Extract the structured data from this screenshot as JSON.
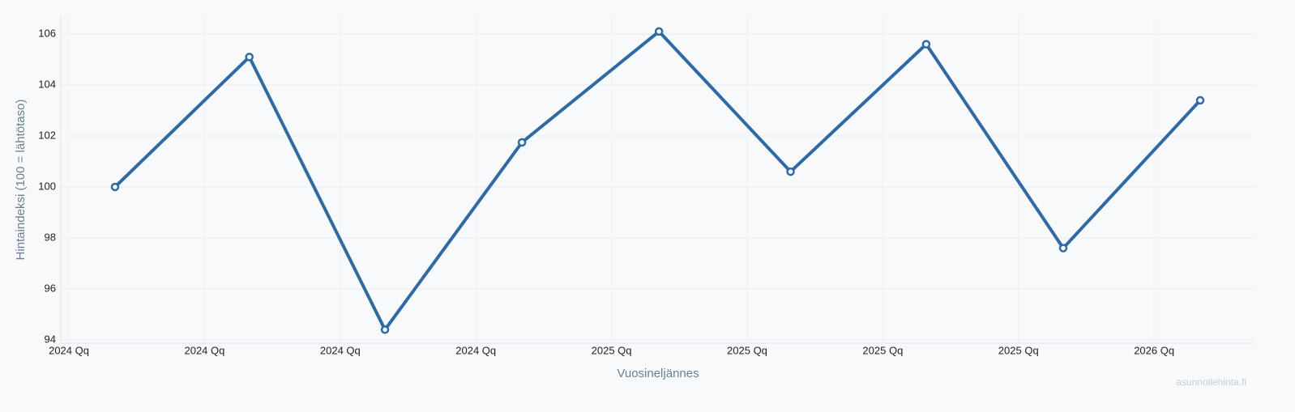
{
  "chart_data": {
    "type": "line",
    "x_label": "Vuosineljännes",
    "y_label": "Hintaindeksi (100 = lähtötaso)",
    "watermark": "asunnollehinta.fi",
    "x": [
      0.34,
      1.33,
      2.33,
      3.34,
      4.35,
      5.32,
      6.32,
      7.33,
      8.34
    ],
    "series": [
      {
        "name": "Hintaindeksi",
        "color": "#2e6aa8",
        "values": [
          100.0,
          105.1,
          94.4,
          101.75,
          106.1,
          100.6,
          105.6,
          97.6,
          103.4
        ]
      }
    ],
    "xlim": [
      -0.06,
      8.74
    ],
    "xticks": [
      {
        "value": 0,
        "label": "2024 Qq"
      },
      {
        "value": 1,
        "label": "2024 Qq"
      },
      {
        "value": 2,
        "label": "2024 Qq"
      },
      {
        "value": 3,
        "label": "2024 Qq"
      },
      {
        "value": 4,
        "label": "2025 Qq"
      },
      {
        "value": 5,
        "label": "2025 Qq"
      },
      {
        "value": 6,
        "label": "2025 Qq"
      },
      {
        "value": 7,
        "label": "2025 Qq"
      },
      {
        "value": 8,
        "label": "2026 Qq"
      }
    ],
    "ylim": [
      93.87,
      106.7
    ],
    "yticks": [
      94,
      96,
      98,
      100,
      102,
      104,
      106
    ],
    "grid": true
  }
}
